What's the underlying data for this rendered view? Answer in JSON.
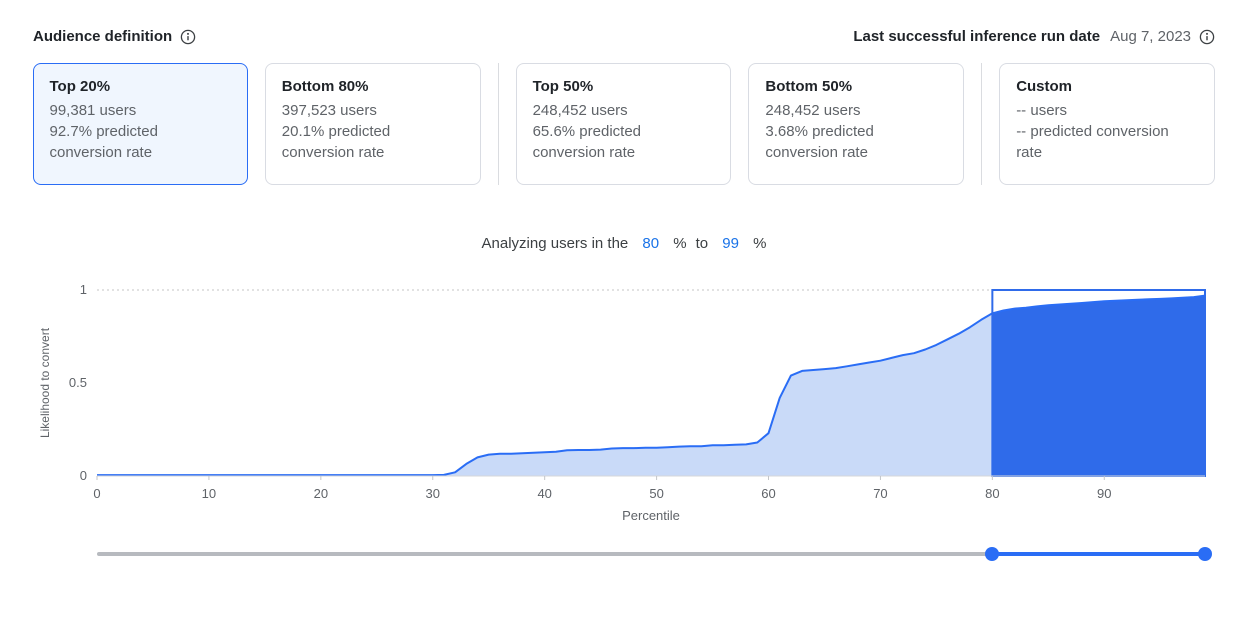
{
  "colors": {
    "accent": "#2a6df5",
    "link_blue": "#1a73e8",
    "area_light": "#c9daf8",
    "area_selected": "#2f6bea",
    "slider_track": "#b7babf",
    "text_primary": "#1f2328",
    "text_secondary": "#5f6368",
    "card_border": "#d9dce3",
    "selected_card_bg": "#f0f6fe"
  },
  "header": {
    "title": "Audience definition",
    "last_run_label": "Last successful inference run date",
    "last_run_date": "Aug 7, 2023"
  },
  "cards": [
    {
      "title": "Top 20%",
      "users": "99,381 users",
      "rate": "92.7% predicted conversion rate",
      "selected": true
    },
    {
      "title": "Bottom 80%",
      "users": "397,523 users",
      "rate": "20.1% predicted conversion rate",
      "selected": false
    },
    {
      "title": "Top 50%",
      "users": "248,452 users",
      "rate": "65.6% predicted conversion rate",
      "selected": false
    },
    {
      "title": "Bottom 50%",
      "users": "248,452 users",
      "rate": "3.68% predicted conversion rate",
      "selected": false
    },
    {
      "title": "Custom",
      "users": "-- users",
      "rate": "-- predicted conversion rate",
      "selected": false
    }
  ],
  "analyze": {
    "prefix": "Analyzing users in the",
    "start": "80",
    "percent": "%",
    "to": "to",
    "end": "99"
  },
  "chart_data": {
    "type": "area",
    "title": "",
    "xlabel": "Percentile",
    "ylabel": "Likelihood to convert",
    "xlim": [
      0,
      99
    ],
    "ylim": [
      0,
      1
    ],
    "xticks": [
      0,
      10,
      20,
      30,
      40,
      50,
      60,
      70,
      80,
      90
    ],
    "yticks": [
      0,
      0.5,
      1
    ],
    "grid": "top-dotted-only",
    "selection": {
      "start": 80,
      "end": 99
    },
    "x": [
      0,
      5,
      10,
      15,
      20,
      25,
      30,
      31,
      32,
      33,
      34,
      35,
      36,
      37,
      38,
      39,
      40,
      41,
      42,
      43,
      44,
      45,
      46,
      47,
      48,
      49,
      50,
      51,
      52,
      53,
      54,
      55,
      56,
      57,
      58,
      59,
      60,
      61,
      62,
      63,
      64,
      65,
      66,
      67,
      68,
      69,
      70,
      71,
      72,
      73,
      74,
      75,
      76,
      77,
      78,
      79,
      80,
      81,
      82,
      83,
      84,
      85,
      86,
      87,
      88,
      89,
      90,
      91,
      92,
      93,
      94,
      95,
      96,
      97,
      98,
      99
    ],
    "y": [
      0.005,
      0.005,
      0.005,
      0.005,
      0.005,
      0.005,
      0.005,
      0.006,
      0.02,
      0.065,
      0.1,
      0.115,
      0.12,
      0.12,
      0.122,
      0.125,
      0.128,
      0.13,
      0.138,
      0.14,
      0.14,
      0.142,
      0.148,
      0.15,
      0.15,
      0.152,
      0.152,
      0.155,
      0.158,
      0.16,
      0.16,
      0.165,
      0.165,
      0.168,
      0.17,
      0.18,
      0.23,
      0.42,
      0.54,
      0.565,
      0.57,
      0.575,
      0.58,
      0.59,
      0.6,
      0.61,
      0.62,
      0.635,
      0.65,
      0.66,
      0.68,
      0.705,
      0.735,
      0.765,
      0.8,
      0.84,
      0.875,
      0.89,
      0.9,
      0.905,
      0.912,
      0.918,
      0.922,
      0.926,
      0.93,
      0.935,
      0.94,
      0.942,
      0.945,
      0.948,
      0.95,
      0.952,
      0.955,
      0.958,
      0.962,
      0.97
    ]
  },
  "slider": {
    "min": 0,
    "max": 99,
    "start": 80,
    "end": 99
  }
}
